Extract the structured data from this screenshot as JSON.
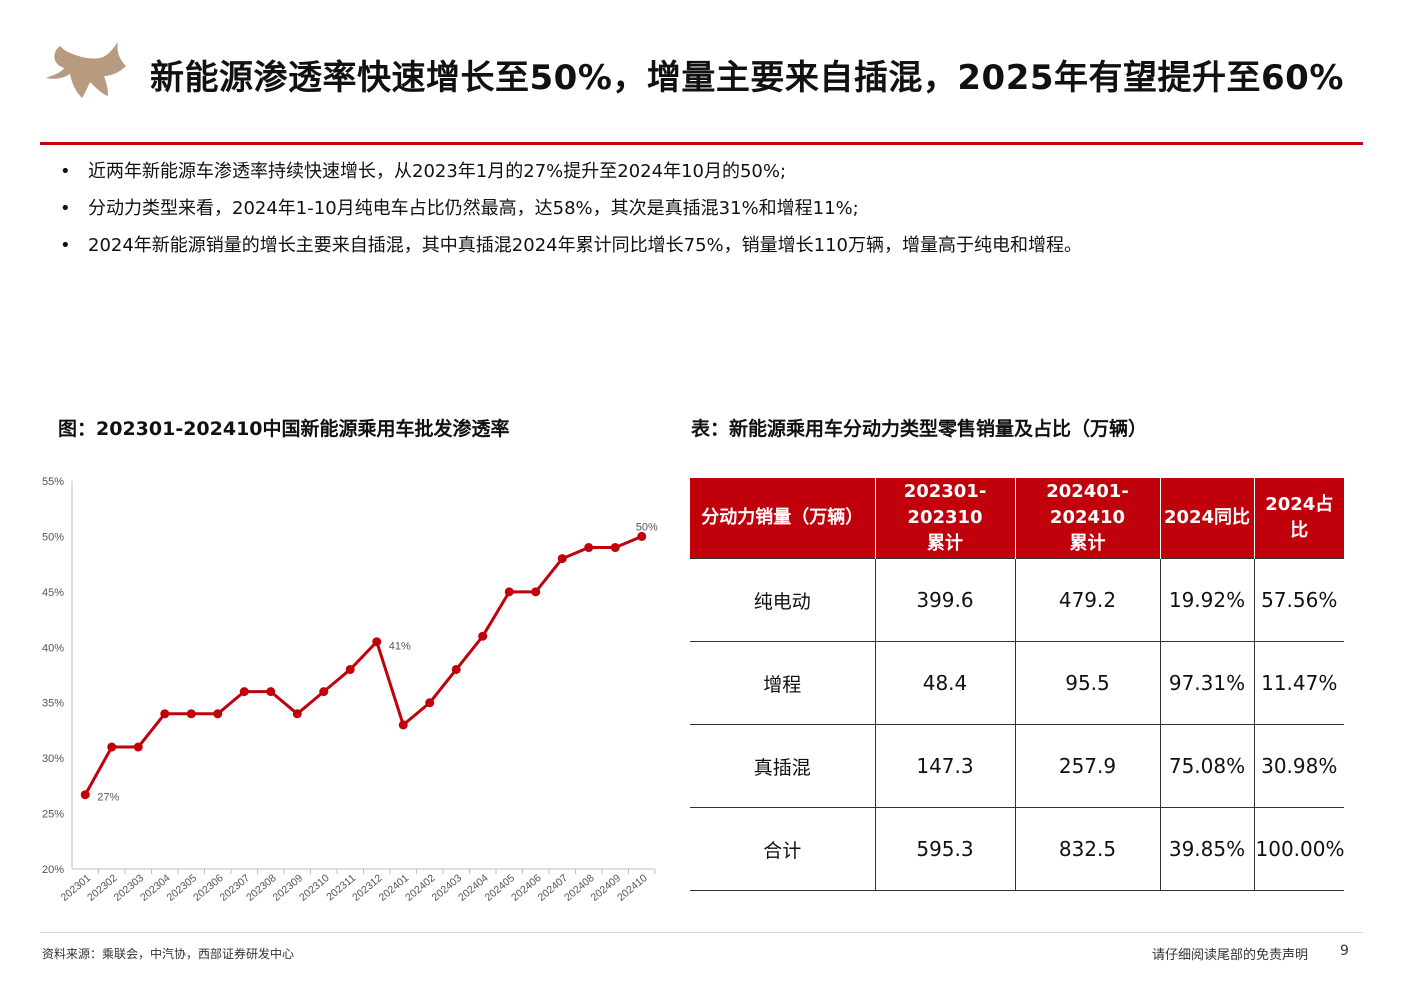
{
  "header": {
    "title": "新能源渗透率快速增长至50%，增量主要来自插混，2025年有望提升至60%"
  },
  "bullets": [
    {
      "marker": "•",
      "text": "近两年新能源车渗透率持续快速增长，从2023年1月的27%提升至2024年10月的50%;"
    },
    {
      "marker": "•",
      "text": "分动力类型来看，2024年1-10月纯电车占比仍然最高，达58%，其次是真插混31%和增程11%;"
    },
    {
      "marker": "•",
      "text": "2024年新能源销量的增长主要来自插混，其中真插混2024年累计同比增长75%，销量增长110万辆，增量高于纯电和增程。"
    }
  ],
  "chart_section": {
    "title": "图：202301-202410中国新能源乘用车批发渗透率"
  },
  "table_section": {
    "title": "表：新能源乘用车分动力类型零售销量及占比（万辆）",
    "headers": [
      {
        "line1": "分动力销量（万辆）",
        "line2": ""
      },
      {
        "line1": "202301-202310",
        "line2": "累计"
      },
      {
        "line1": "202401-202410",
        "line2": "累计"
      },
      {
        "line1": "2024同比",
        "line2": ""
      },
      {
        "line1": "2024占比",
        "line2": ""
      }
    ],
    "rows": [
      {
        "type": "纯电动",
        "v2023": "399.6",
        "v2024": "479.2",
        "yoy": "19.92%",
        "share": "57.56%"
      },
      {
        "type": "增程",
        "v2023": "48.4",
        "v2024": "95.5",
        "yoy": "97.31%",
        "share": "11.47%"
      },
      {
        "type": "真插混",
        "v2023": "147.3",
        "v2024": "257.9",
        "yoy": "75.08%",
        "share": "30.98%"
      },
      {
        "type": "合计",
        "v2023": "595.3",
        "v2024": "832.5",
        "yoy": "39.85%",
        "share": "100.00%"
      }
    ]
  },
  "footer": {
    "source": "资料来源：乘联会，中汽协，西部证券研发中心",
    "disclaimer": "请仔细阅读尾部的免责声明",
    "page": "9"
  },
  "colors": {
    "accent": "#c0000b",
    "logo": "#b79a80"
  },
  "chart_data": {
    "type": "line",
    "title": "",
    "xlabel": "",
    "ylabel": "",
    "ylim": [
      20,
      55
    ],
    "yticks": [
      "20%",
      "25%",
      "30%",
      "35%",
      "40%",
      "45%",
      "50%",
      "55%"
    ],
    "grid": false,
    "categories": [
      "202301",
      "202302",
      "202303",
      "202304",
      "202305",
      "202306",
      "202307",
      "202308",
      "202309",
      "202310",
      "202311",
      "202312",
      "202401",
      "202402",
      "202403",
      "202404",
      "202405",
      "202406",
      "202407",
      "202408",
      "202409",
      "202410"
    ],
    "series": [
      {
        "values": [
          26.7,
          31,
          31,
          34,
          34,
          34,
          36,
          36,
          34,
          36,
          38,
          40.5,
          33,
          35,
          38,
          41,
          45,
          45,
          48,
          49,
          49,
          50
        ]
      }
    ],
    "annotations": [
      {
        "index": 0,
        "label": "27%"
      },
      {
        "index": 11,
        "label": "41%"
      },
      {
        "index": 21,
        "label": "50%"
      }
    ],
    "line_color": "#c0000b"
  }
}
